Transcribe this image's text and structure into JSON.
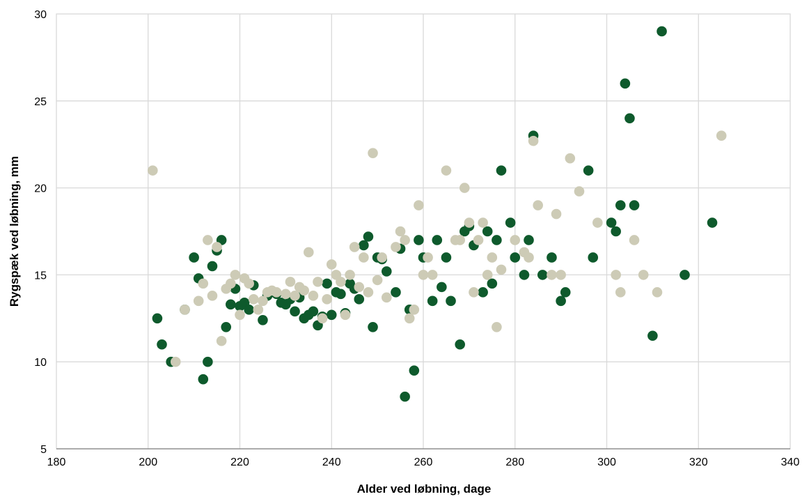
{
  "chart_data": {
    "type": "scatter",
    "xlabel": "Alder ved løbning, dage",
    "ylabel": "Rygspæk ved løbning, mm",
    "xlim": [
      180,
      340
    ],
    "ylim": [
      5,
      30
    ],
    "xticks": [
      "180",
      "200",
      "220",
      "240",
      "260",
      "280",
      "300",
      "320",
      "340"
    ],
    "yticks": [
      "5",
      "10",
      "15",
      "20",
      "25",
      "30"
    ],
    "grid": true,
    "legend": "none",
    "series": [
      {
        "color": "#0e5a2c",
        "points": [
          [
            202,
            12.5
          ],
          [
            203,
            11
          ],
          [
            205,
            10
          ],
          [
            208,
            13
          ],
          [
            210,
            16
          ],
          [
            211,
            14.8
          ],
          [
            212,
            9
          ],
          [
            213,
            10
          ],
          [
            214,
            15.5
          ],
          [
            215,
            16.4
          ],
          [
            216,
            17
          ],
          [
            217,
            12
          ],
          [
            218,
            13.3
          ],
          [
            219,
            14.2
          ],
          [
            220,
            13.2
          ],
          [
            221,
            13.4
          ],
          [
            222,
            13
          ],
          [
            223,
            14.4
          ],
          [
            225,
            12.4
          ],
          [
            226,
            13.8
          ],
          [
            228,
            13.9
          ],
          [
            229,
            13.4
          ],
          [
            230,
            13.3
          ],
          [
            231,
            13.6
          ],
          [
            232,
            12.9
          ],
          [
            233,
            13.7
          ],
          [
            234,
            12.5
          ],
          [
            235,
            12.7
          ],
          [
            236,
            12.9
          ],
          [
            237,
            12.1
          ],
          [
            238,
            12.6
          ],
          [
            239,
            14.5
          ],
          [
            240,
            12.7
          ],
          [
            241,
            14
          ],
          [
            242,
            13.9
          ],
          [
            243,
            12.8
          ],
          [
            244,
            14.5
          ],
          [
            245,
            14.2
          ],
          [
            246,
            13.6
          ],
          [
            247,
            16.7
          ],
          [
            248,
            17.2
          ],
          [
            249,
            12
          ],
          [
            250,
            16
          ],
          [
            251,
            15.9
          ],
          [
            252,
            15.2
          ],
          [
            254,
            14
          ],
          [
            255,
            16.5
          ],
          [
            256,
            8
          ],
          [
            257,
            13
          ],
          [
            258,
            9.5
          ],
          [
            259,
            17
          ],
          [
            260,
            16
          ],
          [
            262,
            13.5
          ],
          [
            263,
            17
          ],
          [
            264,
            14.3
          ],
          [
            265,
            16
          ],
          [
            266,
            13.5
          ],
          [
            268,
            11
          ],
          [
            269,
            17.5
          ],
          [
            270,
            17.8
          ],
          [
            271,
            16.7
          ],
          [
            273,
            14
          ],
          [
            274,
            17.5
          ],
          [
            275,
            14.5
          ],
          [
            276,
            17
          ],
          [
            277,
            21
          ],
          [
            279,
            18
          ],
          [
            280,
            16
          ],
          [
            282,
            15
          ],
          [
            283,
            17
          ],
          [
            284,
            23
          ],
          [
            286,
            15
          ],
          [
            288,
            16
          ],
          [
            290,
            13.5
          ],
          [
            291,
            14
          ],
          [
            296,
            21
          ],
          [
            297,
            16
          ],
          [
            301,
            18
          ],
          [
            302,
            17.5
          ],
          [
            303,
            19
          ],
          [
            304,
            26
          ],
          [
            305,
            24
          ],
          [
            306,
            19
          ],
          [
            310,
            11.5
          ],
          [
            312,
            29
          ],
          [
            317,
            15
          ],
          [
            323,
            18
          ]
        ]
      },
      {
        "color": "#cdcbb6",
        "points": [
          [
            201,
            21
          ],
          [
            206,
            10
          ],
          [
            208,
            13
          ],
          [
            211,
            13.5
          ],
          [
            212,
            14.5
          ],
          [
            213,
            17
          ],
          [
            214,
            13.8
          ],
          [
            215,
            16.6
          ],
          [
            216,
            11.2
          ],
          [
            217,
            14.2
          ],
          [
            218,
            14.5
          ],
          [
            219,
            15
          ],
          [
            220,
            12.7
          ],
          [
            221,
            14.8
          ],
          [
            222,
            14.5
          ],
          [
            223,
            13.6
          ],
          [
            224,
            13
          ],
          [
            225,
            13.5
          ],
          [
            226,
            14
          ],
          [
            227,
            14.1
          ],
          [
            228,
            14
          ],
          [
            230,
            13.9
          ],
          [
            231,
            14.6
          ],
          [
            232,
            13.8
          ],
          [
            233,
            14.3
          ],
          [
            234,
            14.1
          ],
          [
            235,
            16.3
          ],
          [
            236,
            13.8
          ],
          [
            237,
            14.6
          ],
          [
            238,
            12.5
          ],
          [
            239,
            13.6
          ],
          [
            240,
            15.6
          ],
          [
            241,
            15
          ],
          [
            242,
            14.6
          ],
          [
            243,
            12.7
          ],
          [
            244,
            15
          ],
          [
            245,
            16.6
          ],
          [
            246,
            14.3
          ],
          [
            247,
            16
          ],
          [
            248,
            14
          ],
          [
            249,
            22
          ],
          [
            250,
            14.7
          ],
          [
            251,
            16
          ],
          [
            252,
            13.7
          ],
          [
            254,
            16.6
          ],
          [
            255,
            17.5
          ],
          [
            256,
            17
          ],
          [
            257,
            12.5
          ],
          [
            258,
            13
          ],
          [
            259,
            19
          ],
          [
            260,
            15
          ],
          [
            261,
            16
          ],
          [
            262,
            15
          ],
          [
            265,
            21
          ],
          [
            267,
            17
          ],
          [
            268,
            17
          ],
          [
            269,
            20
          ],
          [
            270,
            18
          ],
          [
            271,
            14
          ],
          [
            272,
            17
          ],
          [
            273,
            18
          ],
          [
            274,
            15
          ],
          [
            275,
            16
          ],
          [
            276,
            12
          ],
          [
            277,
            15.3
          ],
          [
            280,
            17
          ],
          [
            282,
            16.3
          ],
          [
            283,
            16
          ],
          [
            284,
            22.7
          ],
          [
            285,
            19
          ],
          [
            288,
            15
          ],
          [
            289,
            18.5
          ],
          [
            290,
            15
          ],
          [
            292,
            21.7
          ],
          [
            294,
            19.8
          ],
          [
            298,
            18
          ],
          [
            302,
            15
          ],
          [
            303,
            14
          ],
          [
            306,
            17
          ],
          [
            308,
            15
          ],
          [
            311,
            14
          ],
          [
            325,
            23
          ]
        ]
      }
    ]
  }
}
